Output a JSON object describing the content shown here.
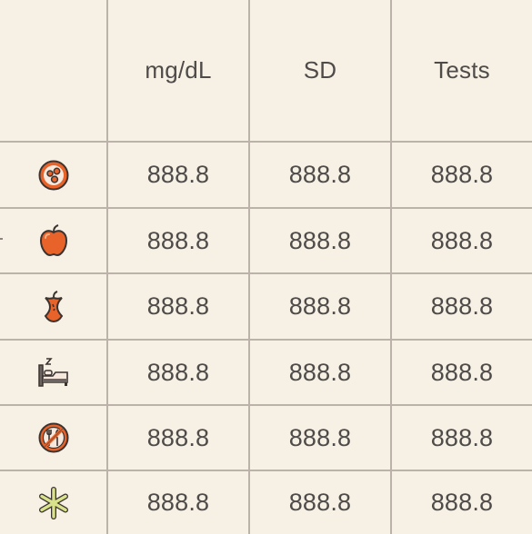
{
  "columns": [
    "mg/dL",
    "SD",
    "Tests"
  ],
  "rows": [
    {
      "icon": "glucose-drops-icon",
      "values": [
        "888.8",
        "888.8",
        "888.8"
      ]
    },
    {
      "icon": "apple-icon",
      "values": [
        "888.8",
        "888.8",
        "888.8"
      ]
    },
    {
      "icon": "apple-core-icon",
      "values": [
        "888.8",
        "888.8",
        "888.8"
      ]
    },
    {
      "icon": "bed-sleep-icon",
      "values": [
        "888.8",
        "888.8",
        "888.8"
      ]
    },
    {
      "icon": "no-food-icon",
      "values": [
        "888.8",
        "888.8",
        "888.8"
      ]
    },
    {
      "icon": "asterisk-icon",
      "values": [
        "888.8",
        "888.8",
        "888.8"
      ]
    }
  ],
  "colors": {
    "background": "#f7f0e5",
    "grid": "#bbb3aa",
    "text": "#4e4b49",
    "accent": "#e8632a",
    "asterisk": "#d8e28a"
  }
}
